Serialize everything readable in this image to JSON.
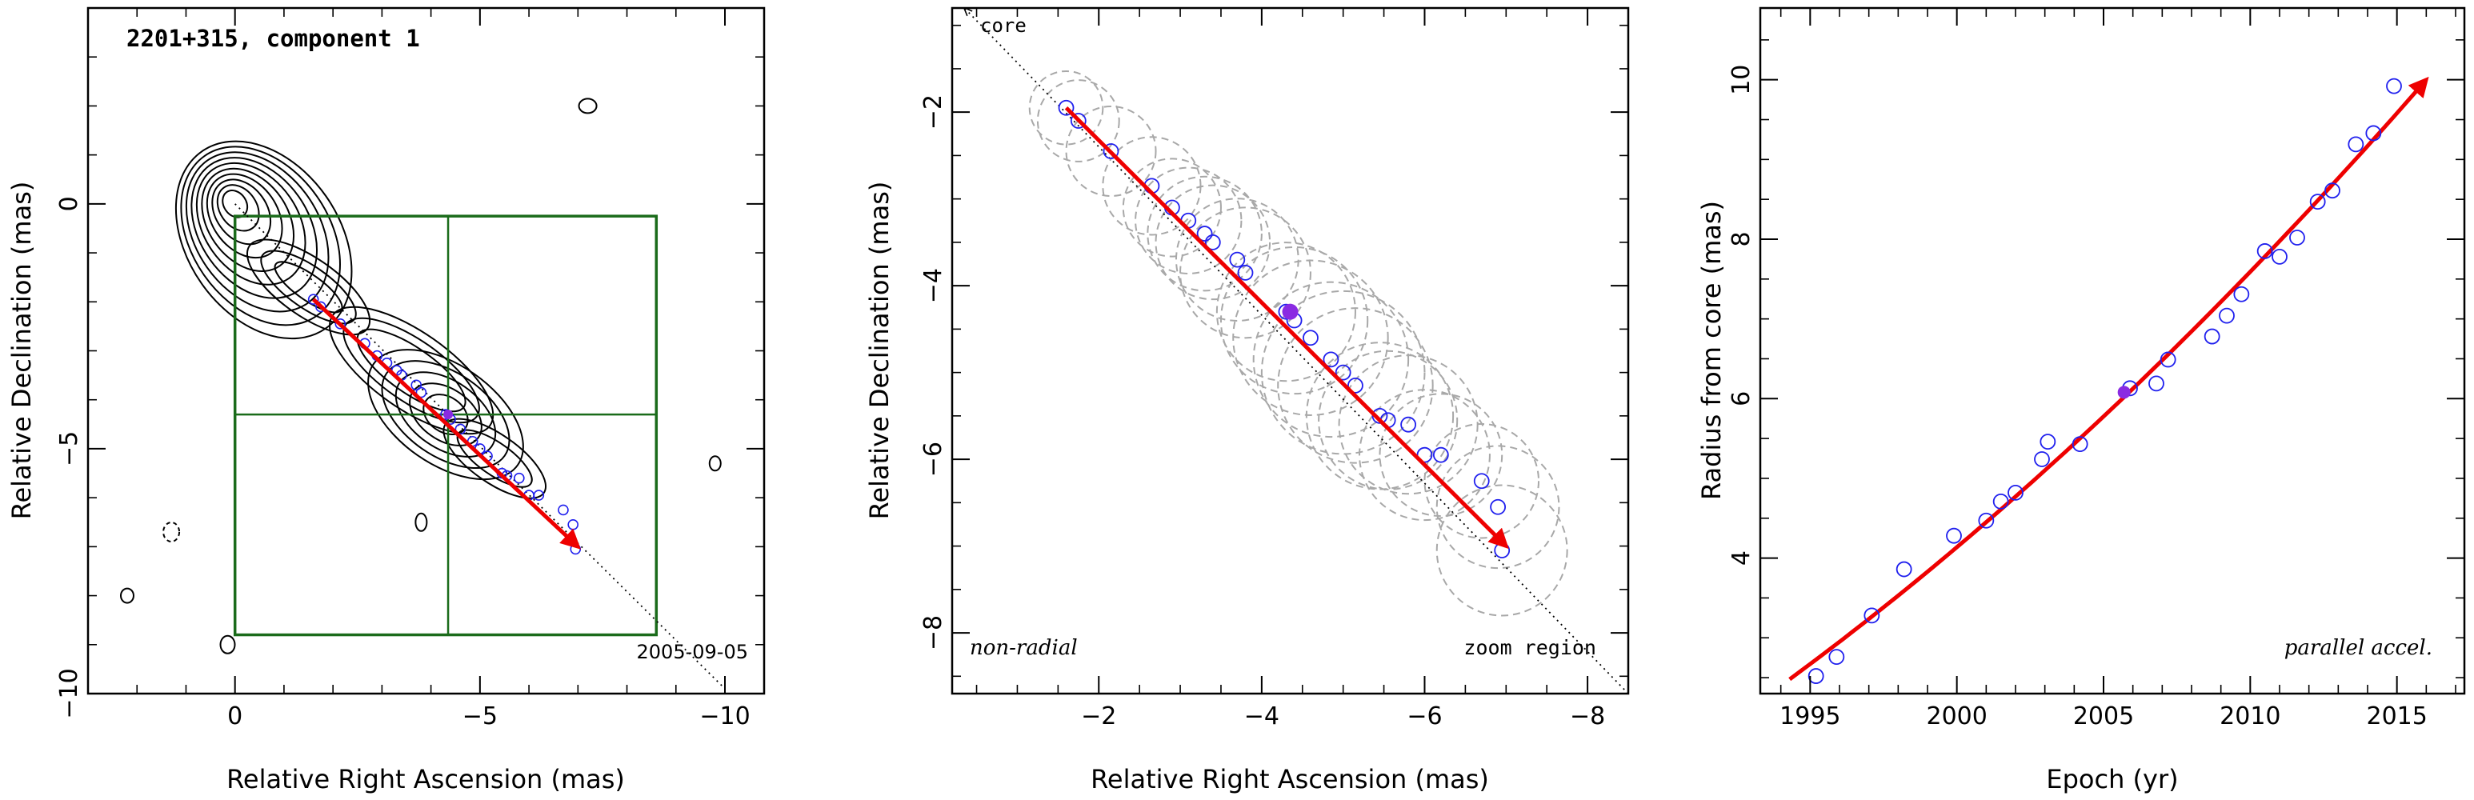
{
  "chart_data": [
    {
      "type": "contour-map",
      "title": "2201+315, component 1",
      "date_label": "2005-09-05",
      "xlabel": "Relative Right Ascension (mas)",
      "ylabel": "Relative Declination (mas)",
      "xlim": [
        3.0,
        -10.8
      ],
      "ylim": [
        -10.0,
        4.0
      ],
      "x_ticks": [
        0,
        -5,
        -10
      ],
      "x_tick_labels": [
        "0",
        "−5",
        "−10"
      ],
      "y_ticks": [
        0,
        -5,
        -10
      ],
      "y_tick_labels": [
        "0",
        "−5",
        "−10"
      ],
      "zoom_box": {
        "x": [
          0.0,
          -8.6
        ],
        "y": [
          -0.25,
          -8.8
        ]
      },
      "crosshair": {
        "x": -4.35,
        "y": -4.3
      },
      "core": {
        "x": 0.0,
        "y": 0.0
      },
      "trajectory_line": {
        "from": [
          0.0,
          0.0
        ],
        "to": [
          -10.0,
          -9.9
        ]
      },
      "motion_vector": {
        "from": [
          -1.6,
          -1.95
        ],
        "to": [
          -7.0,
          -7.0
        ]
      },
      "mean_position": {
        "x": -4.35,
        "y": -4.3
      },
      "positions": [
        {
          "x": -1.6,
          "y": -1.95
        },
        {
          "x": -1.75,
          "y": -2.1
        },
        {
          "x": -2.15,
          "y": -2.45
        },
        {
          "x": -2.65,
          "y": -2.85
        },
        {
          "x": -2.9,
          "y": -3.1
        },
        {
          "x": -3.1,
          "y": -3.25
        },
        {
          "x": -3.3,
          "y": -3.4
        },
        {
          "x": -3.4,
          "y": -3.5
        },
        {
          "x": -3.7,
          "y": -3.7
        },
        {
          "x": -3.8,
          "y": -3.85
        },
        {
          "x": -4.3,
          "y": -4.3
        },
        {
          "x": -4.4,
          "y": -4.4
        },
        {
          "x": -4.6,
          "y": -4.6
        },
        {
          "x": -4.85,
          "y": -4.85
        },
        {
          "x": -5.0,
          "y": -5.0
        },
        {
          "x": -5.15,
          "y": -5.15
        },
        {
          "x": -5.45,
          "y": -5.5
        },
        {
          "x": -5.55,
          "y": -5.55
        },
        {
          "x": -5.8,
          "y": -5.6
        },
        {
          "x": -6.0,
          "y": -5.95
        },
        {
          "x": -6.2,
          "y": -5.95
        },
        {
          "x": -6.7,
          "y": -6.25
        },
        {
          "x": -6.9,
          "y": -6.55
        },
        {
          "x": -6.95,
          "y": -7.05
        }
      ]
    },
    {
      "type": "scatter",
      "xlabel": "Relative Right Ascension (mas)",
      "ylabel": "Relative Declination (mas)",
      "xlim": [
        -0.2,
        -8.5
      ],
      "ylim": [
        -8.7,
        -0.8
      ],
      "x_ticks": [
        -2,
        -4,
        -6,
        -8
      ],
      "x_tick_labels": [
        "−2",
        "−4",
        "−6",
        "−8"
      ],
      "y_ticks": [
        -2,
        -4,
        -6,
        -8
      ],
      "y_tick_labels": [
        "−2",
        "−4",
        "−6",
        "−8"
      ],
      "annotations": {
        "core": "core",
        "bottom_left": "non-radial",
        "bottom_right": "zoom region"
      },
      "trajectory_line": {
        "from": [
          -0.35,
          -0.8
        ],
        "to": [
          -8.5,
          -8.7
        ]
      },
      "motion_vector": {
        "from": [
          -1.6,
          -1.95
        ],
        "to": [
          -7.0,
          -7.0
        ]
      },
      "mean_position": {
        "x": -4.35,
        "y": -4.3
      },
      "positions": [
        {
          "x": -1.6,
          "y": -1.95,
          "r": 0.45
        },
        {
          "x": -1.75,
          "y": -2.1,
          "r": 0.5
        },
        {
          "x": -2.15,
          "y": -2.45,
          "r": 0.55
        },
        {
          "x": -2.65,
          "y": -2.85,
          "r": 0.6
        },
        {
          "x": -2.9,
          "y": -3.1,
          "r": 0.6
        },
        {
          "x": -3.1,
          "y": -3.25,
          "r": 0.65
        },
        {
          "x": -3.3,
          "y": -3.4,
          "r": 0.7
        },
        {
          "x": -3.4,
          "y": -3.5,
          "r": 0.7
        },
        {
          "x": -3.7,
          "y": -3.7,
          "r": 0.75
        },
        {
          "x": -3.8,
          "y": -3.85,
          "r": 0.8
        },
        {
          "x": -4.3,
          "y": -4.3,
          "r": 0.85
        },
        {
          "x": -4.4,
          "y": -4.4,
          "r": 0.9
        },
        {
          "x": -4.6,
          "y": -4.6,
          "r": 0.95
        },
        {
          "x": -4.85,
          "y": -4.85,
          "r": 0.95
        },
        {
          "x": -5.0,
          "y": -5.0,
          "r": 1.0
        },
        {
          "x": -5.15,
          "y": -5.15,
          "r": 0.95
        },
        {
          "x": -5.45,
          "y": -5.5,
          "r": 0.9
        },
        {
          "x": -5.55,
          "y": -5.55,
          "r": 0.85
        },
        {
          "x": -5.8,
          "y": -5.6,
          "r": 0.85
        },
        {
          "x": -6.0,
          "y": -5.95,
          "r": 0.8
        },
        {
          "x": -6.2,
          "y": -5.95,
          "r": 0.75
        },
        {
          "x": -6.7,
          "y": -6.25,
          "r": 0.7
        },
        {
          "x": -6.9,
          "y": -6.55,
          "r": 0.75
        },
        {
          "x": -6.95,
          "y": -7.05,
          "r": 0.8
        }
      ]
    },
    {
      "type": "scatter",
      "xlabel": "Epoch (yr)",
      "ylabel": "Radius from core (mas)",
      "annotation": "parallel accel.",
      "xlim": [
        1993.3,
        2017.3
      ],
      "ylim": [
        2.3,
        10.9
      ],
      "x_ticks": [
        1995,
        2000,
        2005,
        2010,
        2015
      ],
      "x_tick_labels": [
        "1995",
        "2000",
        "2005",
        "2010",
        "2015"
      ],
      "y_ticks": [
        4,
        6,
        8,
        10
      ],
      "y_tick_labels": [
        "4",
        "6",
        "8",
        "10"
      ],
      "fit": {
        "from": [
          1994.3,
          2.48
        ],
        "to": [
          2016.0,
          10.0
        ]
      },
      "mean_position": {
        "x": 2005.7,
        "y": 6.08
      },
      "points": [
        {
          "x": 1995.2,
          "y": 2.52
        },
        {
          "x": 1995.9,
          "y": 2.76
        },
        {
          "x": 1997.1,
          "y": 3.28
        },
        {
          "x": 1998.2,
          "y": 3.86
        },
        {
          "x": 1999.9,
          "y": 4.28
        },
        {
          "x": 2001.0,
          "y": 4.47
        },
        {
          "x": 2001.5,
          "y": 4.71
        },
        {
          "x": 2002.0,
          "y": 4.82
        },
        {
          "x": 2002.9,
          "y": 5.24
        },
        {
          "x": 2003.1,
          "y": 5.46
        },
        {
          "x": 2004.2,
          "y": 5.43
        },
        {
          "x": 2005.9,
          "y": 6.13
        },
        {
          "x": 2006.8,
          "y": 6.19
        },
        {
          "x": 2007.2,
          "y": 6.49
        },
        {
          "x": 2008.7,
          "y": 6.78
        },
        {
          "x": 2009.2,
          "y": 7.04
        },
        {
          "x": 2009.7,
          "y": 7.31
        },
        {
          "x": 2010.5,
          "y": 7.85
        },
        {
          "x": 2011.0,
          "y": 7.78
        },
        {
          "x": 2011.6,
          "y": 8.02
        },
        {
          "x": 2012.3,
          "y": 8.47
        },
        {
          "x": 2012.8,
          "y": 8.61
        },
        {
          "x": 2013.6,
          "y": 9.19
        },
        {
          "x": 2014.2,
          "y": 9.33
        },
        {
          "x": 2014.9,
          "y": 9.92
        }
      ]
    }
  ]
}
